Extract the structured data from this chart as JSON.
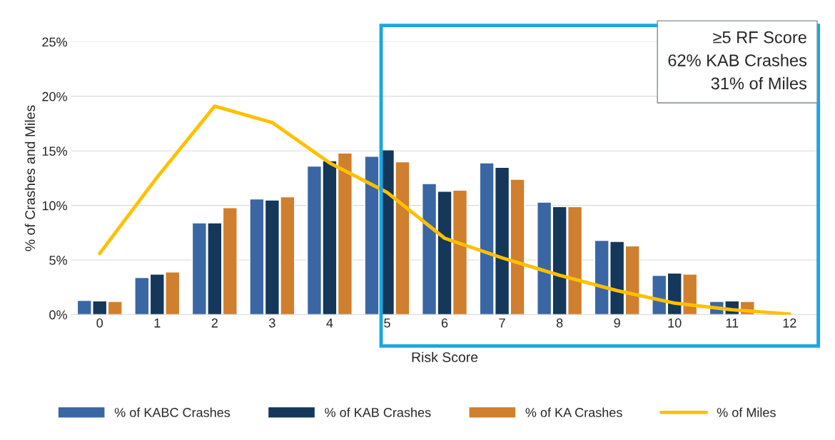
{
  "chart_data": {
    "type": "bar",
    "xlabel": "Risk Score",
    "ylabel": "% of Crashes and Miles",
    "categories": [
      "0",
      "1",
      "2",
      "3",
      "4",
      "5",
      "6",
      "7",
      "8",
      "9",
      "10",
      "11",
      "12"
    ],
    "series": [
      {
        "name": "% of KABC Crashes",
        "color": "#3a67a3",
        "values": [
          1.3,
          3.4,
          8.4,
          10.6,
          13.6,
          14.5,
          12.0,
          13.9,
          10.3,
          6.8,
          3.6,
          1.2,
          null
        ]
      },
      {
        "name": "% of KAB Crashes",
        "color": "#14375a",
        "values": [
          1.25,
          3.7,
          8.4,
          10.5,
          14.1,
          15.1,
          11.3,
          13.5,
          9.9,
          6.7,
          3.8,
          1.25,
          null
        ]
      },
      {
        "name": "% of KA Crashes",
        "color": "#d07f2e",
        "values": [
          1.2,
          3.9,
          9.8,
          10.8,
          14.8,
          14.0,
          11.4,
          12.4,
          9.9,
          6.3,
          3.7,
          1.2,
          null
        ]
      },
      {
        "name": "% of Miles",
        "type": "line",
        "color": "#ffc000",
        "values": [
          5.6,
          12.6,
          19.1,
          17.6,
          13.9,
          11.2,
          7.0,
          5.2,
          3.6,
          2.2,
          1.05,
          0.45,
          0.05
        ]
      }
    ],
    "ylim": [
      0,
      25
    ],
    "yticks": [
      {
        "value": 0,
        "label": "0%"
      },
      {
        "value": 5,
        "label": "5%"
      },
      {
        "value": 10,
        "label": "10%"
      },
      {
        "value": 15,
        "label": "15%"
      },
      {
        "value": 20,
        "label": "20%"
      },
      {
        "value": 25,
        "label": "25%"
      }
    ],
    "annotations": [
      "≥5 RF Score\n62% KAB Crashes\n31% of Miles"
    ],
    "grid": "y",
    "legend": "bottom",
    "marker": "none",
    "line_style": "solid"
  }
}
